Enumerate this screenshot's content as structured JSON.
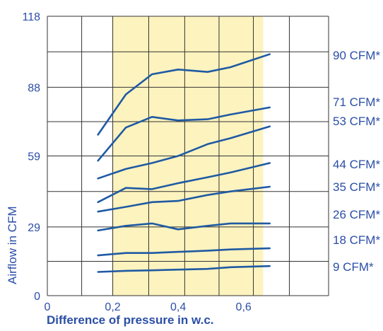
{
  "chart_data": {
    "type": "line",
    "xlabel": "Difference of pressure in w.c.",
    "ylabel": "Airflow in CFM",
    "xlim": [
      0,
      0.86
    ],
    "ylim": [
      0,
      118
    ],
    "x_ticks": [
      {
        "value": 0,
        "label": "0"
      },
      {
        "value": 0.2,
        "label": "0,2"
      },
      {
        "value": 0.4,
        "label": "0,4"
      },
      {
        "value": 0.6,
        "label": "0,6"
      }
    ],
    "y_ticks": [
      {
        "value": 0,
        "label": "0"
      },
      {
        "value": 29,
        "label": "29"
      },
      {
        "value": 59,
        "label": "59"
      },
      {
        "value": 88,
        "label": "88"
      },
      {
        "value": 118,
        "label": "118"
      }
    ],
    "x_grid": [
      0,
      0.105,
      0.2,
      0.31,
      0.42,
      0.525,
      0.63,
      0.74,
      0.86
    ],
    "y_grid": [
      0,
      14.5,
      29,
      44,
      59,
      73.5,
      88,
      103,
      118
    ],
    "highlight_band": {
      "x_from": 0.2,
      "x_to": 0.66
    },
    "grid": true,
    "legend": "right, labels beside curves",
    "colors": {
      "line": "#1f5aa3",
      "text": "#2b4ea6",
      "band": "#fdf3bf",
      "grid": "#333333"
    },
    "series": [
      {
        "name": "90 CFM*",
        "x": [
          0.155,
          0.24,
          0.32,
          0.4,
          0.49,
          0.56,
          0.68
        ],
        "y": [
          68,
          85,
          93.5,
          95.5,
          94.5,
          96.5,
          102
        ]
      },
      {
        "name": "71 CFM*",
        "x": [
          0.155,
          0.24,
          0.32,
          0.4,
          0.49,
          0.56,
          0.68
        ],
        "y": [
          57,
          71,
          75.5,
          74,
          74.5,
          76.5,
          79.5
        ]
      },
      {
        "name": "53 CFM*",
        "x": [
          0.155,
          0.24,
          0.32,
          0.4,
          0.49,
          0.56,
          0.68
        ],
        "y": [
          49.5,
          53.5,
          56,
          59,
          64,
          66.5,
          71.5
        ]
      },
      {
        "name": "44 CFM*",
        "x": [
          0.155,
          0.24,
          0.32,
          0.4,
          0.49,
          0.56,
          0.68
        ],
        "y": [
          39.5,
          45.5,
          45,
          47.5,
          50,
          52,
          56
        ]
      },
      {
        "name": "35 CFM*",
        "x": [
          0.155,
          0.24,
          0.32,
          0.4,
          0.49,
          0.56,
          0.68
        ],
        "y": [
          35.5,
          37.5,
          39.5,
          40,
          42.5,
          44,
          46
        ]
      },
      {
        "name": "26 CFM*",
        "x": [
          0.155,
          0.24,
          0.32,
          0.4,
          0.49,
          0.56,
          0.68
        ],
        "y": [
          27.5,
          29.5,
          30.5,
          28,
          29.5,
          30.5,
          30.5
        ]
      },
      {
        "name": "18 CFM*",
        "x": [
          0.155,
          0.24,
          0.32,
          0.4,
          0.49,
          0.56,
          0.68
        ],
        "y": [
          17,
          18,
          18,
          18.5,
          19,
          19.5,
          20
        ]
      },
      {
        "name": "9 CFM*",
        "x": [
          0.155,
          0.24,
          0.32,
          0.4,
          0.49,
          0.56,
          0.68
        ],
        "y": [
          10,
          10.5,
          10.7,
          11,
          11.3,
          12,
          12.5
        ]
      }
    ]
  }
}
